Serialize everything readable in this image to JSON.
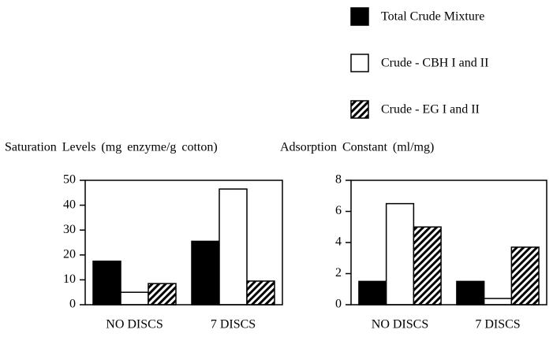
{
  "chart_data": [
    {
      "type": "bar",
      "title": "Saturation Levels (mg enzyme/g cotton)",
      "categories": [
        "NO DISCS",
        "7 DISCS"
      ],
      "series": [
        {
          "name": "Total Crude Mixture",
          "color": "#000000",
          "values": [
            17.5,
            25.5
          ]
        },
        {
          "name": "Crude - CBH I and II",
          "color": "#ffffff",
          "values": [
            5,
            46.5
          ]
        },
        {
          "name": "Crude - EG I and II",
          "color": "#000000",
          "pattern": "hatch",
          "values": [
            8.5,
            9.5
          ]
        }
      ],
      "ylim": [
        0,
        50
      ],
      "yticks": [
        0,
        10,
        20,
        30,
        40,
        50
      ]
    },
    {
      "type": "bar",
      "title": "Adsorption Constant (ml/mg)",
      "categories": [
        "NO DISCS",
        "7 DISCS"
      ],
      "series": [
        {
          "color": "#000000",
          "values": [
            1.5,
            1.5
          ]
        },
        {
          "color": "#ffffff",
          "values": [
            6.5,
            0.4
          ]
        },
        {
          "color": "#000000",
          "pattern": "hatch",
          "values": [
            5,
            3.7
          ]
        }
      ],
      "ylim": [
        0,
        8
      ],
      "yticks": [
        0,
        2,
        4,
        6,
        8
      ]
    }
  ]
}
